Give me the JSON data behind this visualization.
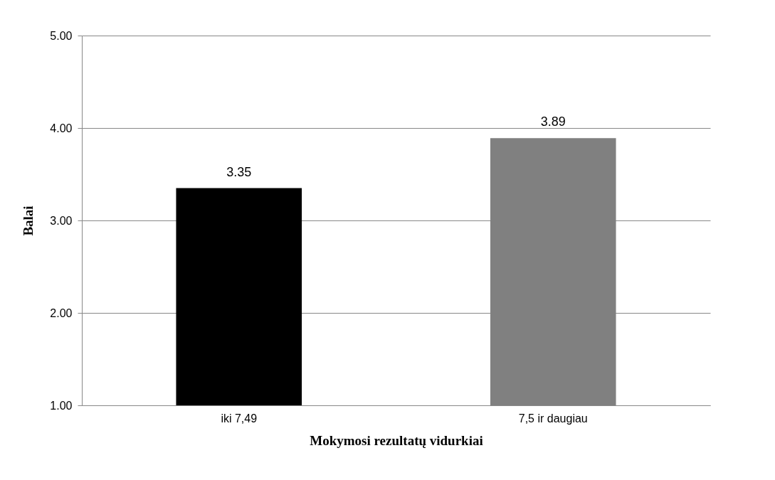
{
  "chart_data": {
    "type": "bar",
    "xlabel": "Mokymosi rezultatų vidurkiai",
    "ylabel": "Balai",
    "categories": [
      "iki 7,49",
      "7,5 ir daugiau"
    ],
    "values": [
      3.35,
      3.89
    ],
    "colors": [
      "#000000",
      "#808080"
    ],
    "ylim": [
      1,
      5
    ],
    "yticks": [
      {
        "value": 1,
        "label": "1.00"
      },
      {
        "value": 2,
        "label": "2.00"
      },
      {
        "value": 3,
        "label": "3.00"
      },
      {
        "value": 4,
        "label": "4.00"
      },
      {
        "value": 5,
        "label": "5.00"
      }
    ],
    "grid": "y",
    "data_labels": true,
    "legend": false
  }
}
